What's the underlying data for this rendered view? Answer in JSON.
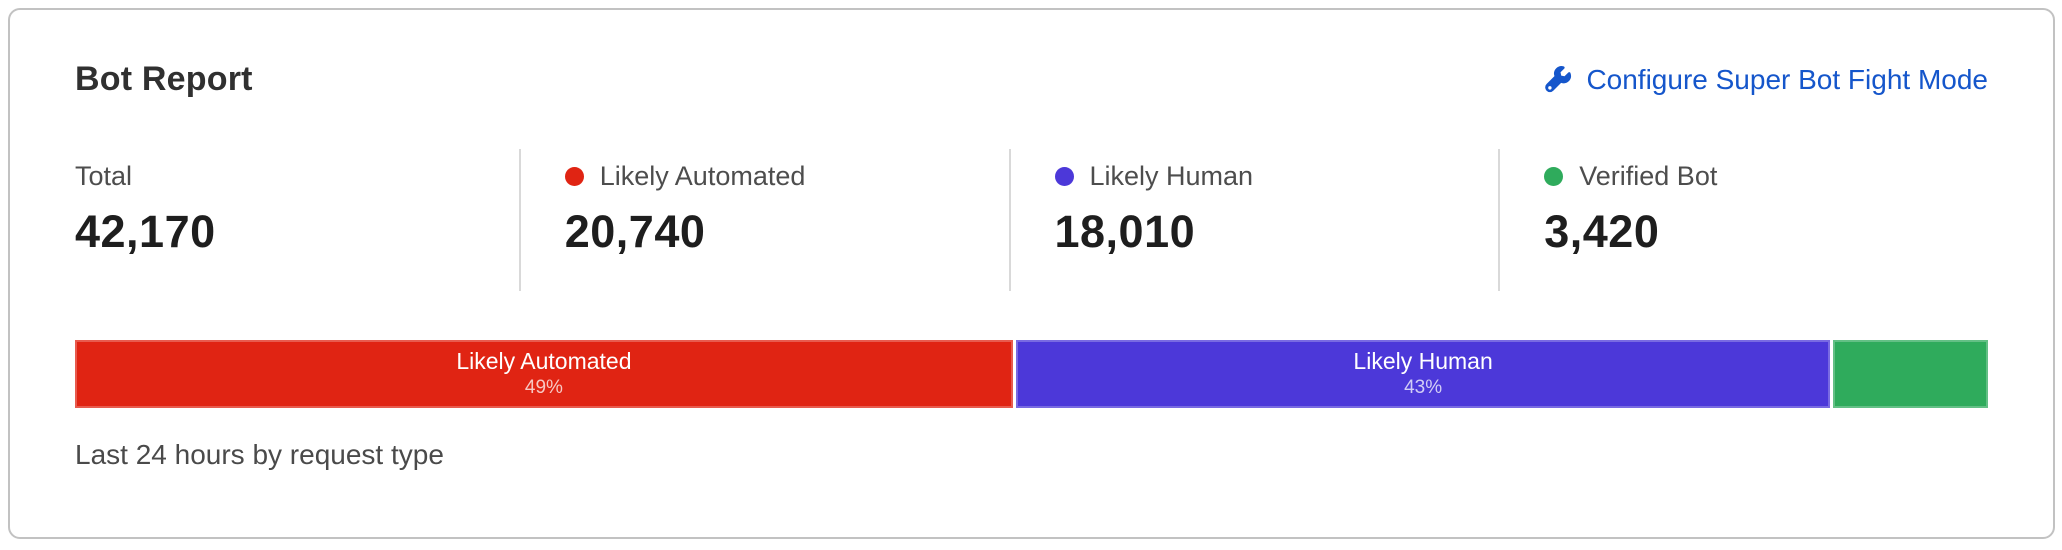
{
  "card": {
    "title": "Bot Report",
    "action": {
      "icon": "wrench-icon",
      "label": "Configure Super Bot Fight Mode",
      "color": "#1556cb"
    },
    "caption": "Last 24 hours by request type"
  },
  "stats": [
    {
      "label": "Total",
      "value": "42,170",
      "dot_color": null
    },
    {
      "label": "Likely Automated",
      "value": "20,740",
      "dot_color": "#e02413"
    },
    {
      "label": "Likely Human",
      "value": "18,010",
      "dot_color": "#4c38d9"
    },
    {
      "label": "Verified Bot",
      "value": "3,420",
      "dot_color": "#2fab5c"
    }
  ],
  "chart_data": {
    "type": "bar",
    "variant": "horizontal-stacked",
    "title": "Bot Report",
    "subtitle": "Last 24 hours by request type",
    "categories": [
      "Likely Automated",
      "Likely Human",
      "Verified Bot"
    ],
    "values": [
      20740,
      18010,
      3420
    ],
    "total": 42170,
    "legend_position": "top",
    "axis": "none",
    "segments": [
      {
        "name": "Likely Automated",
        "value": 20740,
        "pct_label": "49%",
        "width_pct": 49.18,
        "color": "#e02413",
        "show_label": true
      },
      {
        "name": "Likely Human",
        "value": 18010,
        "pct_label": "43%",
        "width_pct": 42.71,
        "color": "#4c38d9",
        "show_label": true
      },
      {
        "name": "Verified Bot",
        "value": 3420,
        "pct_label": "8%",
        "width_pct": 8.11,
        "color": "#2fab5c",
        "show_label": false
      }
    ]
  }
}
